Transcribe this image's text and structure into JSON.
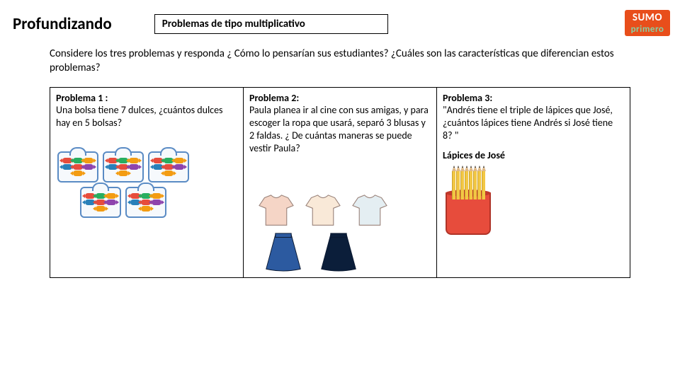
{
  "header": {
    "title": "Profundizando",
    "tag": "Problemas de tipo multiplicativo"
  },
  "logo": {
    "top": "SUMO",
    "bottom": "primero"
  },
  "intro": "Considere los tres problemas y responda ¿ Cómo lo pensarían sus estudiantes? ¿Cuáles son las características que diferencian estos problemas?",
  "problems": {
    "p1": {
      "title": "Problema 1 :",
      "text": "Una bolsa tiene 7 dulces, ¿cuántos dulces hay en 5 bolsas?",
      "candy_colors": [
        "#e74c3c",
        "#27ae60",
        "#f39c12",
        "#2980b9",
        "#e74c3c",
        "#8e44ad",
        "#f39c12"
      ],
      "bag_border": "#5a8bc4"
    },
    "p2": {
      "title": "Problema 2:",
      "text": "Paula planea ir al cine con sus amigas, y para escoger la ropa que usará, separó 3 blusas y 2 faldas. ¿ De cuántas maneras se puede vestir Paula?",
      "top_colors": [
        "#f5d5c6",
        "#f9e9d8",
        "#e4eef2"
      ],
      "skirt_colors": [
        "#2c5aa0",
        "#0b1e3a"
      ]
    },
    "p3": {
      "title": "Problema 3:",
      "text": "\"Andrés tiene el triple de lápices que José, ¿cuántos lápices tiene Andrés si José tiene 8? \"",
      "sub": "Lápices de José",
      "pencil_count": 8,
      "pencil_color": "#f2c744",
      "holder_color": "#e74c3c"
    }
  }
}
